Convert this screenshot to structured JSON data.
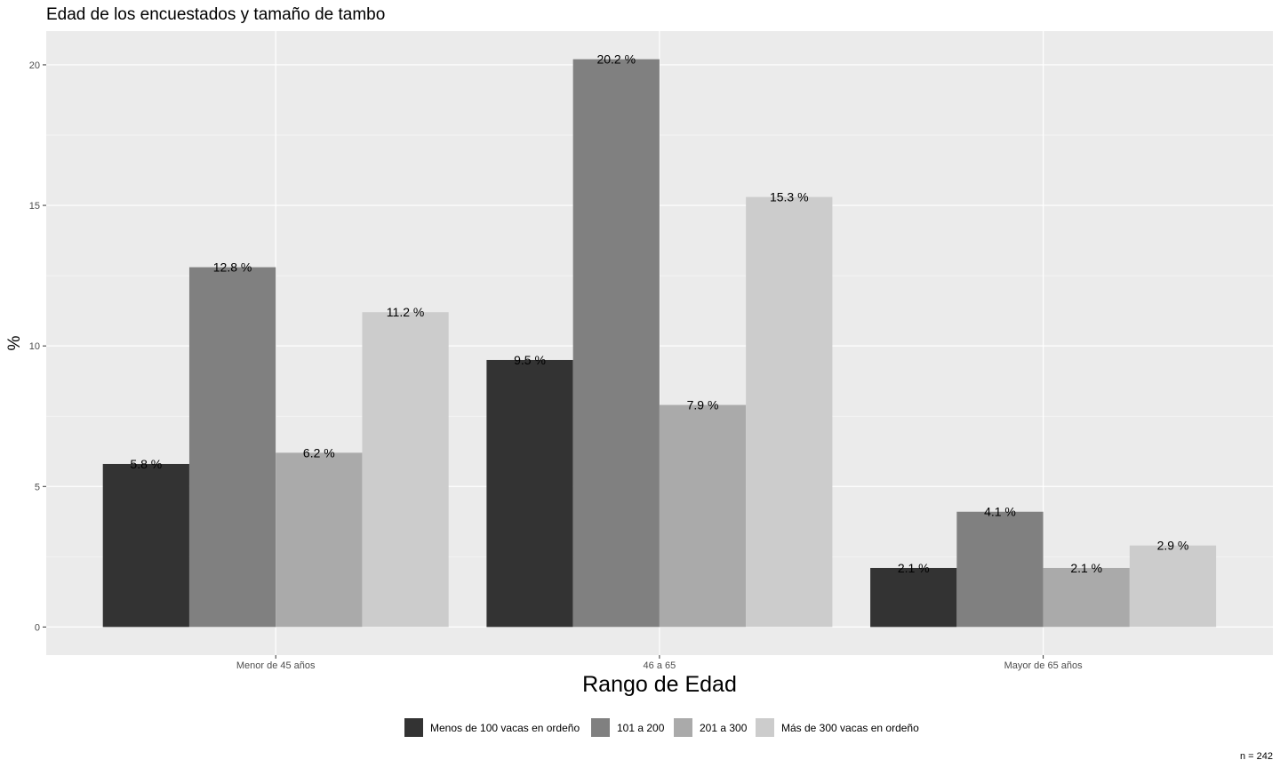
{
  "chart_data": {
    "type": "bar",
    "title": "Edad de los encuestados y tamaño de tambo",
    "xlabel": "Rango de Edad",
    "ylabel": "%",
    "caption": "n = 242",
    "categories": [
      "Menor de 45 años",
      "46 a 65",
      "Mayor de 65 años"
    ],
    "y_ticks": [
      0,
      5,
      10,
      15,
      20
    ],
    "ylim": [
      -1,
      21.2
    ],
    "grid": true,
    "legend_position": "bottom",
    "series": [
      {
        "name": "Menos de 100 vacas en ordeño",
        "color": "#333333",
        "values": [
          5.8,
          9.5,
          2.1
        ],
        "labels": [
          "5.8 %",
          "9.5 %",
          "2.1 %"
        ]
      },
      {
        "name": "101 a 200",
        "color": "#808080",
        "values": [
          12.8,
          20.2,
          4.1
        ],
        "labels": [
          "12.8 %",
          "20.2 %",
          "4.1 %"
        ]
      },
      {
        "name": "201 a 300",
        "color": "#aaaaaa",
        "values": [
          6.2,
          7.9,
          2.1
        ],
        "labels": [
          "6.2 %",
          "7.9 %",
          "2.1 %"
        ]
      },
      {
        "name": "Más de 300 vacas en ordeño",
        "color": "#cccccc",
        "values": [
          11.2,
          15.3,
          2.9
        ],
        "labels": [
          "11.2 %",
          "15.3 %",
          "2.9 %"
        ]
      }
    ]
  }
}
